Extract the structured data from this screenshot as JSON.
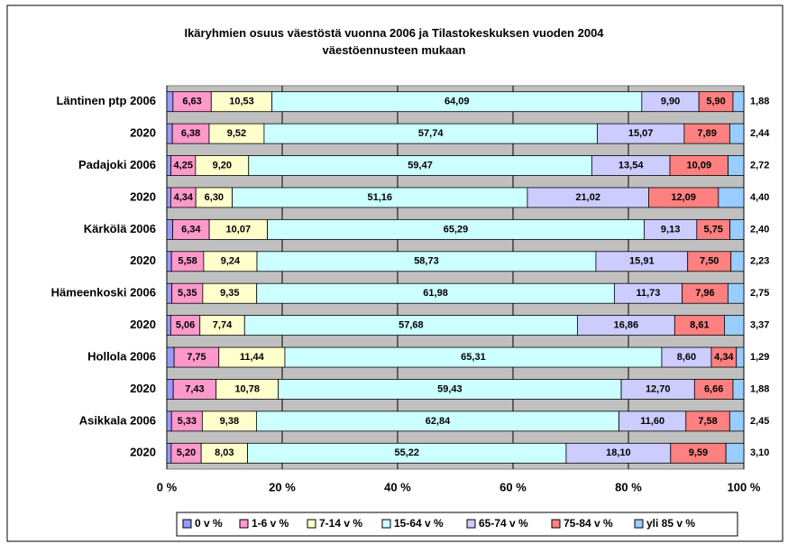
{
  "chart_data": {
    "type": "stacked-bar-horizontal",
    "title": "Ikäryhmien osuus väestöstä vuonna 2006 ja Tilastokeskuksen vuoden 2004 väestöennusteen mukaan",
    "categories": [
      "Läntinen ptp 2006",
      "2020",
      "Padajoki 2006",
      "2020",
      "Kärkölä 2006",
      "2020",
      "Hämeenkoski 2006",
      "2020",
      "Hollola 2006",
      "2020",
      "Asikkala 2006",
      "2020"
    ],
    "series": [
      {
        "name": "0 v %",
        "color": "#9999ff",
        "values": [
          1.07,
          0.96,
          0.73,
          0.69,
          1.02,
          0.81,
          0.88,
          0.68,
          1.27,
          1.12,
          0.82,
          0.76
        ]
      },
      {
        "name": "1-6 v %",
        "color": "#ff99cc",
        "values": [
          6.63,
          6.38,
          4.25,
          4.34,
          6.34,
          5.58,
          5.35,
          5.06,
          7.75,
          7.43,
          5.33,
          5.2
        ],
        "value_labels": [
          "6,63",
          "6,38",
          "4,25",
          "4,34",
          "6,34",
          "5,58",
          "5,35",
          "5,06",
          "7,75",
          "7,43",
          "5,33",
          "5,20"
        ]
      },
      {
        "name": "7-14 v %",
        "color": "#ffffcc",
        "values": [
          10.53,
          9.52,
          9.2,
          6.3,
          10.07,
          9.24,
          9.35,
          7.74,
          11.44,
          10.78,
          9.38,
          8.03
        ],
        "value_labels": [
          "10,53",
          "9,52",
          "9,20",
          "6,30",
          "10,07",
          "9,24",
          "9,35",
          "7,74",
          "11,44",
          "10,78",
          "9,38",
          "8,03"
        ]
      },
      {
        "name": "15-64 v %",
        "color": "#ccffff",
        "values": [
          64.09,
          57.74,
          59.47,
          51.16,
          65.29,
          58.73,
          61.98,
          57.68,
          65.31,
          59.43,
          62.84,
          55.22
        ],
        "value_labels": [
          "64,09",
          "57,74",
          "59,47",
          "51,16",
          "65,29",
          "58,73",
          "61,98",
          "57,68",
          "65,31",
          "59,43",
          "62,84",
          "55,22"
        ]
      },
      {
        "name": "65-74 v %",
        "color": "#ccccff",
        "values": [
          9.9,
          15.07,
          13.54,
          21.02,
          9.13,
          15.91,
          11.73,
          16.86,
          8.6,
          12.7,
          11.6,
          18.1
        ],
        "value_labels": [
          "9,90",
          "15,07",
          "13,54",
          "21,02",
          "9,13",
          "15,91",
          "11,73",
          "16,86",
          "8,60",
          "12,70",
          "11,60",
          "18,10"
        ]
      },
      {
        "name": "75-84 v %",
        "color": "#ff8080",
        "values": [
          5.9,
          7.89,
          10.09,
          12.09,
          5.75,
          7.5,
          7.96,
          8.61,
          4.34,
          6.66,
          7.58,
          9.59
        ],
        "value_labels": [
          "5,90",
          "7,89",
          "10,09",
          "12,09",
          "5,75",
          "7,50",
          "7,96",
          "8,61",
          "4,34",
          "6,66",
          "7,58",
          "9,59"
        ]
      },
      {
        "name": "yli 85 v %",
        "color": "#99ccff",
        "values": [
          1.88,
          2.44,
          2.72,
          4.4,
          2.4,
          2.23,
          2.75,
          3.37,
          1.29,
          1.88,
          2.45,
          3.1
        ],
        "value_labels": [
          "1,88",
          "2,44",
          "2,72",
          "4,40",
          "2,40",
          "2,23",
          "2,75",
          "3,37",
          "1,29",
          "1,88",
          "2,45",
          "3,10"
        ]
      }
    ],
    "xlim": [
      0,
      100
    ],
    "xticks": [
      {
        "value": 0,
        "label": "0 %"
      },
      {
        "value": 20,
        "label": "20 %"
      },
      {
        "value": 40,
        "label": "40 %"
      },
      {
        "value": 60,
        "label": "60 %"
      },
      {
        "value": 80,
        "label": "80 %"
      },
      {
        "value": 100,
        "label": "100 %"
      }
    ],
    "grid": true,
    "legend": "bottom"
  }
}
